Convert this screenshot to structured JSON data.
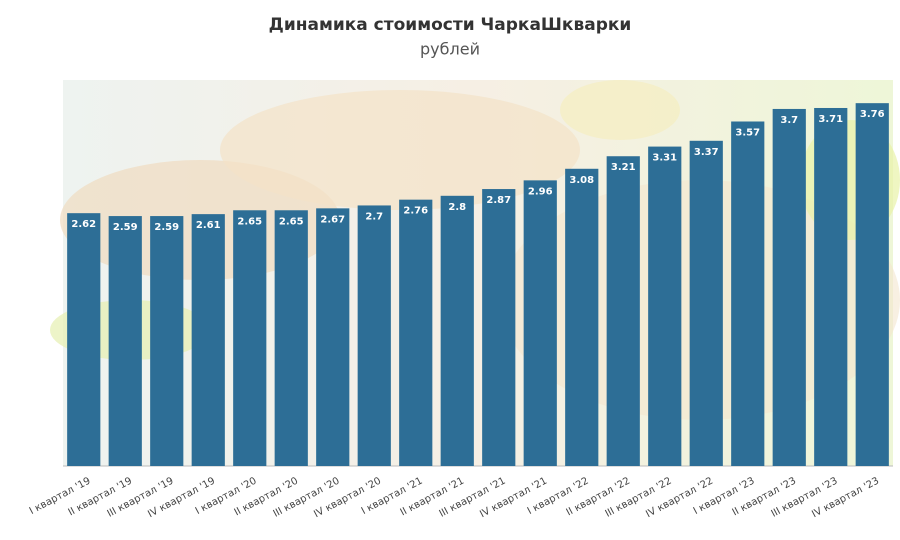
{
  "chart_data": {
    "type": "bar",
    "title": "Динамика стоимости ЧаркаШкварки",
    "subtitle": "рублей",
    "categories": [
      "I квартал '19",
      "II квартал '19",
      "III квартал '19",
      "IV квартал '19",
      "I квартал '20",
      "II квартал '20",
      "III квартал '20",
      "IV квартал '20",
      "I квартал '21",
      "II квартал '21",
      "III квартал '21",
      "IV квартал '21",
      "I квартал '22",
      "II квартал '22",
      "III квартал '22",
      "IV квартал '22",
      "I квартал '23",
      "II квартал '23",
      "III квартал '23",
      "IV квартал '23"
    ],
    "values": [
      2.62,
      2.59,
      2.59,
      2.61,
      2.65,
      2.65,
      2.67,
      2.7,
      2.76,
      2.8,
      2.87,
      2.96,
      3.08,
      3.21,
      3.31,
      3.37,
      3.57,
      3.7,
      3.71,
      3.76
    ],
    "color": "#2d6e96",
    "ylim": [
      0,
      4
    ]
  }
}
